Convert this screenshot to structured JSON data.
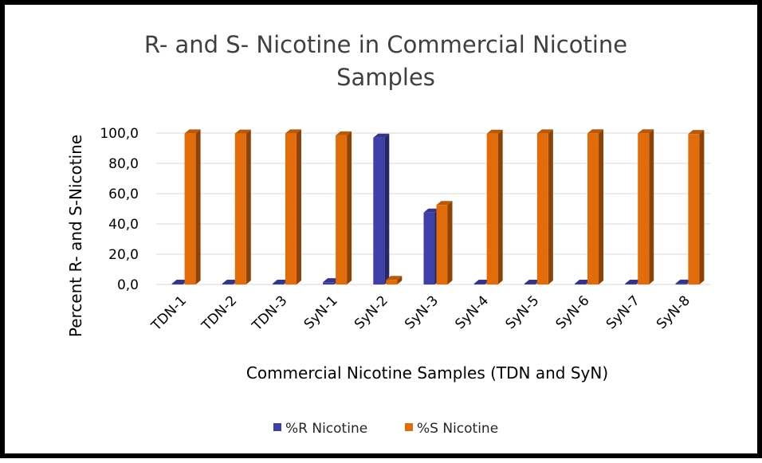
{
  "chart_data": {
    "type": "bar",
    "title_line1": "R- and S- Nicotine in Commercial Nicotine",
    "title_line2": "Samples",
    "xlabel": "Commercial Nicotine Samples (TDN and SyN)",
    "ylabel": "Percent  R- and S-Nicotine",
    "ylim": [
      0,
      100
    ],
    "yticks": [
      "0,0",
      "20,0",
      "40,0",
      "60,0",
      "80,0",
      "100,0"
    ],
    "ytick_values": [
      0,
      20,
      40,
      60,
      80,
      100
    ],
    "categories": [
      "TDN-1",
      "TDN-2",
      "TDN-3",
      "SyN-1",
      "SyN-2",
      "SyN-3",
      "SyN-4",
      "SyN-5",
      "SyN-6",
      "SyN-7",
      "SyN-8"
    ],
    "series": [
      {
        "name": "%R Nicotine",
        "color": "#3f3fa8",
        "values": [
          0.2,
          0.3,
          0.2,
          1.5,
          97.0,
          47.5,
          0.4,
          0.2,
          0.1,
          0.1,
          0.6
        ]
      },
      {
        "name": "%S Nicotine",
        "color": "#e36c0a",
        "values": [
          99.8,
          99.7,
          99.8,
          98.5,
          3.0,
          52.5,
          99.6,
          99.8,
          99.9,
          99.9,
          99.4
        ]
      }
    ],
    "grid": true,
    "legend_position": "bottom"
  }
}
